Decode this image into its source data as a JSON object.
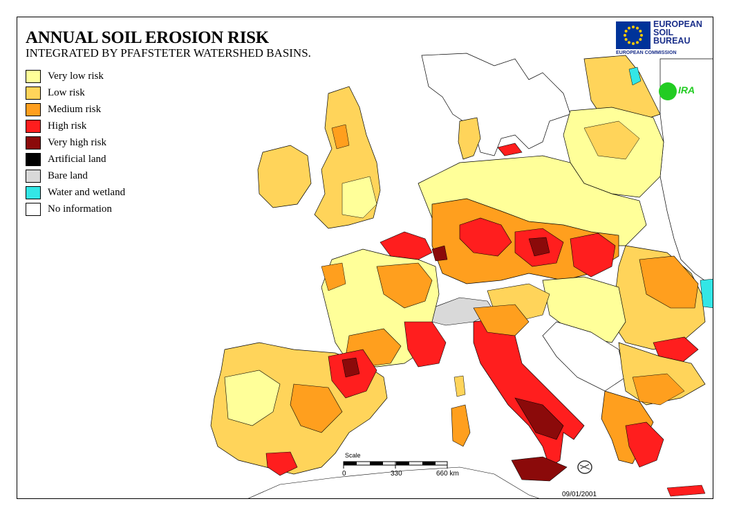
{
  "title": "ANNUAL SOIL EROSION RISK",
  "subtitle": "INTEGRATED BY PFAFSTETER WATERSHED BASINS.",
  "legend": [
    {
      "label": "Very low risk",
      "color": "#ffff99"
    },
    {
      "label": "Low risk",
      "color": "#ffd45a"
    },
    {
      "label": "Medium risk",
      "color": "#ff9f1e"
    },
    {
      "label": "High risk",
      "color": "#ff1e1e"
    },
    {
      "label": "Very high risk",
      "color": "#8b0a0a"
    },
    {
      "label": "Artificial land",
      "color": "#000000"
    },
    {
      "label": "Bare land",
      "color": "#d9d9d9"
    },
    {
      "label": "Water and wetland",
      "color": "#33e6e6"
    },
    {
      "label": "No information",
      "color": "#ffffff"
    }
  ],
  "logo": {
    "eu_line1": "EUROPEAN",
    "eu_line2": "SOIL",
    "eu_line3": "BUREAU",
    "eu_sub": "EUROPEAN COMMISSION",
    "ira_text": "IRA"
  },
  "scale": {
    "label": "Scale",
    "ticks": [
      "0",
      "330",
      "660 km"
    ]
  },
  "date": "09/01/2001",
  "colors": {
    "sea": "#ffffff",
    "basin_border": "#000000"
  }
}
